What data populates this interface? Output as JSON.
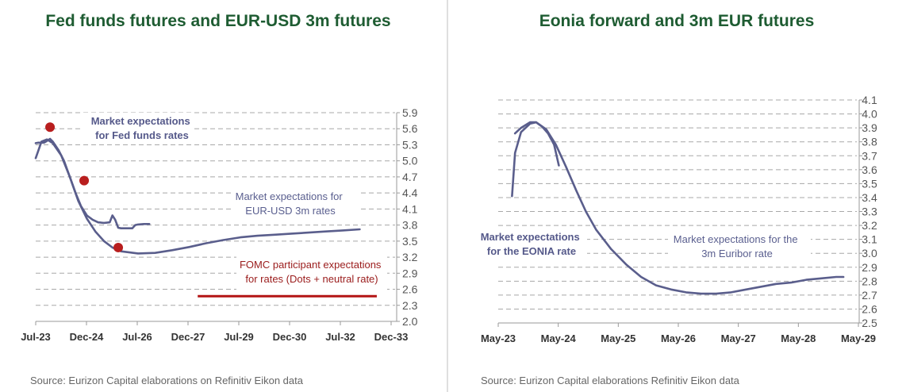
{
  "chart_data": [
    {
      "type": "line",
      "title": "Fed funds futures and EUR-USD 3m futures",
      "source": "Source: Eurizon Capital elaborations on Refinitiv Eikon data",
      "x_ticks": [
        "Jul-23",
        "Dec-24",
        "Jul-26",
        "Dec-27",
        "Jul-29",
        "Dec-30",
        "Jul-32",
        "Dec-33"
      ],
      "x_range": [
        2023.5,
        2033.92
      ],
      "ylim": [
        2.0,
        5.9
      ],
      "y_ticks": [
        "5.9",
        "5.6",
        "5.3",
        "5.0",
        "4.7",
        "4.4",
        "4.1",
        "3.8",
        "3.5",
        "3.2",
        "2.9",
        "2.6",
        "2.3",
        "2.0"
      ],
      "y_axis_side": "right",
      "grid": "horizontal dashed",
      "annotations": [
        {
          "lines": [
            "Market expectations",
            "for Fed funds rates"
          ],
          "style": "bold"
        },
        {
          "lines": [
            "Market expectations for",
            "EUR-USD 3m rates"
          ],
          "style": "normal"
        },
        {
          "lines": [
            "FOMC participant expectations",
            "for rates (Dots + neutral rate)"
          ],
          "style": "red"
        }
      ],
      "series": [
        {
          "name": "Fed funds futures",
          "color": "#5a5e8c",
          "x": [
            2023.5,
            2023.58,
            2023.75,
            2023.92,
            2024.0,
            2024.17,
            2024.33,
            2024.5,
            2024.67,
            2024.83,
            2025.0,
            2025.17,
            2025.33,
            2025.5,
            2025.67,
            2025.75,
            2025.83,
            2025.92,
            2026.0,
            2026.17,
            2026.33,
            2026.42,
            2026.5,
            2026.67,
            2026.83
          ],
          "y": [
            5.33,
            5.34,
            5.34,
            5.41,
            5.36,
            5.2,
            5.0,
            4.7,
            4.4,
            4.15,
            3.98,
            3.9,
            3.85,
            3.84,
            3.85,
            3.98,
            3.9,
            3.75,
            3.74,
            3.74,
            3.74,
            3.8,
            3.81,
            3.82,
            3.82
          ]
        },
        {
          "name": "EUR-USD 3m futures",
          "color": "#5a5e8c",
          "x": [
            2023.5,
            2023.67,
            2023.83,
            2024.0,
            2024.25,
            2024.5,
            2024.75,
            2025.0,
            2025.25,
            2025.5,
            2025.75,
            2026.0,
            2026.5,
            2027.0,
            2027.5,
            2028.0,
            2028.5,
            2029.0,
            2029.5,
            2030.0,
            2030.5,
            2031.0,
            2031.5,
            2032.0,
            2032.5,
            2033.0
          ],
          "y": [
            5.05,
            5.36,
            5.4,
            5.33,
            5.1,
            4.7,
            4.25,
            3.92,
            3.68,
            3.5,
            3.38,
            3.31,
            3.27,
            3.28,
            3.33,
            3.39,
            3.46,
            3.52,
            3.57,
            3.6,
            3.62,
            3.64,
            3.66,
            3.68,
            3.7,
            3.72
          ]
        },
        {
          "name": "FOMC dots",
          "type": "scatter",
          "color": "#b81e1e",
          "x": [
            2023.92,
            2024.92,
            2025.92
          ],
          "y": [
            5.63,
            4.63,
            3.38
          ]
        },
        {
          "name": "Neutral rate",
          "type": "hline",
          "color": "#b31414",
          "x": [
            2028.25,
            2033.5
          ],
          "y": [
            2.47,
            2.47
          ]
        }
      ]
    },
    {
      "type": "line",
      "title": "Eonia forward and 3m EUR futures",
      "source": "Source: Eurizon Capital elaborations Refinitiv  Eikon data",
      "x_ticks": [
        "May-23",
        "May-24",
        "May-25",
        "May-26",
        "May-27",
        "May-28",
        "May-29"
      ],
      "x_range": [
        2023.37,
        2029.37
      ],
      "ylim": [
        2.5,
        4.1
      ],
      "y_ticks": [
        "4.1",
        "4.0",
        "3.9",
        "3.8",
        "3.7",
        "3.6",
        "3.5",
        "3.4",
        "3.3",
        "3.2",
        "3.1",
        "3.0",
        "2.9",
        "2.8",
        "2.7",
        "2.6",
        "2.5"
      ],
      "y_axis_side": "right",
      "grid": "horizontal dashed",
      "annotations": [
        {
          "lines": [
            "Market expectations",
            "for the EONIA rate"
          ],
          "style": "bold"
        },
        {
          "lines": [
            "Market expectations for the",
            "3m Euribor rate"
          ],
          "style": "normal"
        }
      ],
      "series": [
        {
          "name": "EONIA forward",
          "color": "#5a5e8c",
          "x": [
            2023.6,
            2023.65,
            2023.75,
            2023.9,
            2024.0,
            2024.1,
            2024.2,
            2024.3,
            2024.38
          ],
          "y": [
            3.41,
            3.72,
            3.87,
            3.93,
            3.94,
            3.91,
            3.86,
            3.78,
            3.63
          ]
        },
        {
          "name": "3m Euribor futures",
          "color": "#5a5e8c",
          "x": [
            2023.65,
            2023.75,
            2023.9,
            2024.0,
            2024.17,
            2024.33,
            2024.5,
            2024.67,
            2024.83,
            2025.0,
            2025.25,
            2025.5,
            2025.75,
            2026.0,
            2026.25,
            2026.5,
            2026.75,
            2027.0,
            2027.25,
            2027.5,
            2027.75,
            2028.0,
            2028.25,
            2028.5,
            2028.75,
            2029.0,
            2029.12
          ],
          "y": [
            3.86,
            3.9,
            3.94,
            3.94,
            3.89,
            3.78,
            3.62,
            3.45,
            3.3,
            3.17,
            3.03,
            2.92,
            2.83,
            2.77,
            2.74,
            2.72,
            2.71,
            2.71,
            2.72,
            2.74,
            2.76,
            2.78,
            2.79,
            2.81,
            2.82,
            2.83,
            2.83
          ]
        }
      ]
    }
  ]
}
